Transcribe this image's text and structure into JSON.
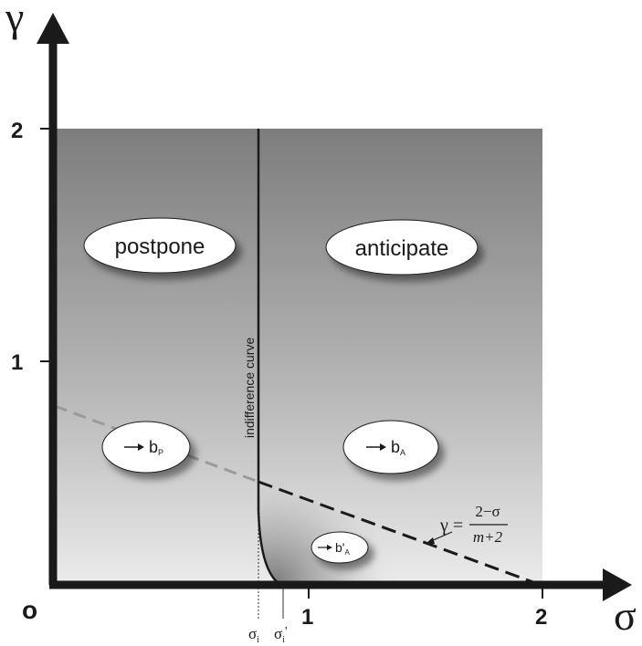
{
  "axes": {
    "y_symbol": "γ",
    "x_symbol": "σ",
    "origin_label": "o",
    "y_ticks": [
      "2",
      "1"
    ],
    "x_ticks": [
      "1",
      "2"
    ]
  },
  "regions": {
    "left_label": "postpone",
    "right_label": "anticipate"
  },
  "indifference_curve_label": "indifference curve",
  "markers": {
    "left": "b",
    "left_sub": "P",
    "right": "b",
    "right_sub": "A",
    "lower": "b'",
    "lower_sub": "A"
  },
  "sigma_marks": {
    "first": "σ",
    "first_sub": "i",
    "second": "σ",
    "second_sub": "i",
    "second_prime": "'"
  },
  "formula": {
    "lhs": "γ =",
    "numerator": "2−σ",
    "denominator": "m+2"
  },
  "colors": {
    "axis": "#1a1a1a",
    "panel_top": "#7f7f7f",
    "panel_bottom": "#e6e6e6",
    "dashed_gray": "#9a9a9a"
  }
}
